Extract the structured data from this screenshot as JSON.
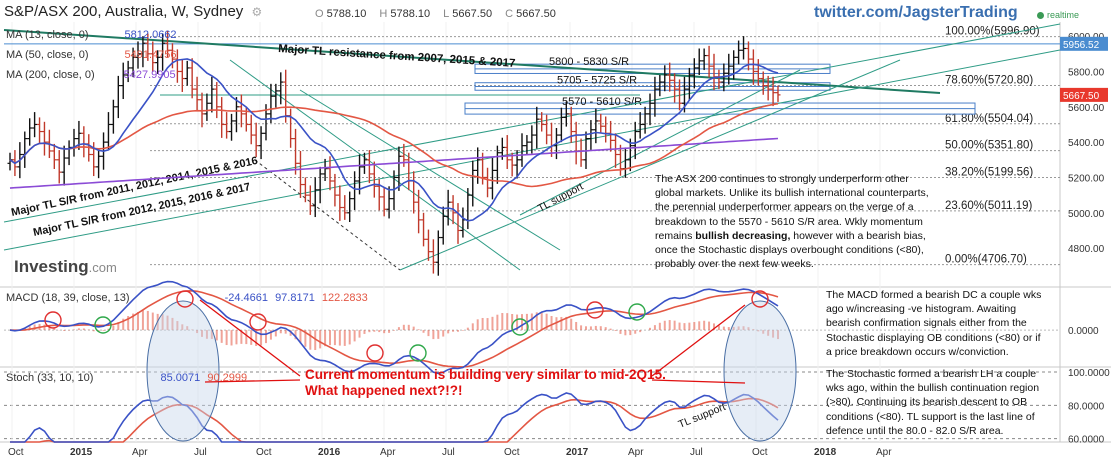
{
  "header": {
    "title": "S&P/ASX 200, Australia, W, Sydney",
    "open_label": "O",
    "open": "5788.10",
    "high_label": "H",
    "high": "5788.10",
    "low_label": "L",
    "low": "5667.50",
    "close_label": "C",
    "close": "5667.50",
    "twitter": "twitter.com/JagsterTrading",
    "realtime": "realtime",
    "logo": "Investing",
    "logo_suffix": ".com"
  },
  "indicators": {
    "ma13": {
      "label": "MA (13, close, 0)",
      "value": "5812.0662"
    },
    "ma50": {
      "label": "MA (50, close, 0)",
      "value": "5491.4756"
    },
    "ma200": {
      "label": "MA (200, close, 0)",
      "value": "5427.9905"
    },
    "macd": {
      "label": "MACD (18, 39, close, 13)",
      "v1": "-24.4661",
      "v2": "97.8171",
      "v3": "122.2833"
    },
    "stoch": {
      "label": "Stoch (33, 10, 10)",
      "v1": "85.0071",
      "v2": "90.2999"
    }
  },
  "annotations": {
    "tl_2007": "Major TL resistance from 2007, 2015 & 2017",
    "tl_2011": "Major TL S/R from 2011, 2012, 2014, 2015 & 2016",
    "tl_2012": "Major TL S/R from 2012, 2015, 2016 & 2017",
    "sr_5800": "5800 - 5830 S/R",
    "sr_5705": "5705 - 5725 S/R",
    "sr_5570": "5570 - 5610 S/R",
    "tl_support": "TL support",
    "tl_support_stoch": "TL support",
    "red_note_1": "Current momentum is building very similar to mid-2Q15.",
    "red_note_2": "What happened next?!?!"
  },
  "notes": {
    "main": [
      "The ASX 200 continues to strongly underperform  other",
      "global markets.  Unlike its bullish international counterparts,",
      "the perennial underperformer appears on the verge of a",
      "breakdown to the 5570 - 5610 S/R area.  Wkly momentum",
      "remains ",
      "bullish decreasing,",
      " however with a bearish bias,",
      "once the Stochastic displays overbought  conditions (<80),",
      "probably over the next few weeks."
    ],
    "macd": [
      "The MACD formed a bearish DC a couple  wks",
      "ago w/increasing -ve histogram.  Awaiting",
      "bearish confirmation signals either from the",
      "Stochastic displaying OB conditions (<80) or if",
      "a price breakdown occurs  w/conviction."
    ],
    "stoch": [
      "The Stochastic formed a bearish LH a couple",
      "wks ago, within the bullish continuation region",
      "(>80).  Continuing its bearish descent to OB",
      "conditions (<80).  TL support is the last line of",
      "defence until the 80.0 - 82.0 S/R area."
    ]
  },
  "chart_data": {
    "type": "candlestick",
    "title": "S&P/ASX 200, Australia, W, Sydney",
    "price_axis": {
      "ylim": [
        4580,
        6080
      ],
      "ticks": [
        "6000.00",
        "5800.00",
        "5600.00",
        "5400.00",
        "5200.00",
        "5000.00",
        "4800.00"
      ],
      "tick_values": [
        6000,
        5800,
        5600,
        5400,
        5200,
        5000,
        4800
      ]
    },
    "current_price": {
      "value": 5667.5,
      "label": "5667.50",
      "color": "#e8382c"
    },
    "top_level": {
      "value": 5956.52,
      "label": "5956.52",
      "color": "#4a8cd0"
    },
    "time_axis": {
      "labels": [
        "Oct",
        "2015",
        "Apr",
        "Jul",
        "Oct",
        "2016",
        "Apr",
        "Jul",
        "Oct",
        "2017",
        "Apr",
        "Jul",
        "Oct",
        "2018",
        "Apr"
      ],
      "bold": [
        "2015",
        "2016",
        "2017",
        "2018"
      ]
    },
    "fibonacci": [
      {
        "label": "100.00%(5996.90)",
        "value": 5996.9
      },
      {
        "label": "78.60%(5720.80)",
        "value": 5720.8
      },
      {
        "label": "61.80%(5504.04)",
        "value": 5504.04
      },
      {
        "label": "50.00%(5351.80)",
        "value": 5351.8
      },
      {
        "label": "38.20%(5199.56)",
        "value": 5199.56
      },
      {
        "label": "23.60%(5011.19)",
        "value": 5011.19
      },
      {
        "label": "0.00%(4706.70)",
        "value": 4706.7
      }
    ],
    "sr_zones": [
      {
        "label": "5800 - 5830 S/R",
        "low": 5800,
        "high": 5830
      },
      {
        "label": "5705 - 5725 S/R",
        "low": 5705,
        "high": 5725
      },
      {
        "label": "5570 - 5610 S/R",
        "low": 5570,
        "high": 5610
      }
    ],
    "series_close": [
      5300,
      5260,
      5330,
      5420,
      5480,
      5500,
      5460,
      5400,
      5350,
      5300,
      5230,
      5310,
      5370,
      5420,
      5450,
      5390,
      5330,
      5260,
      5320,
      5400,
      5500,
      5600,
      5720,
      5780,
      5820,
      5880,
      5900,
      5960,
      5900,
      5850,
      5880,
      5960,
      5920,
      5870,
      5800,
      5760,
      5820,
      5700,
      5640,
      5560,
      5620,
      5700,
      5600,
      5500,
      5460,
      5520,
      5600,
      5560,
      5500,
      5440,
      5380,
      5450,
      5560,
      5660,
      5690,
      5740,
      5550,
      5420,
      5280,
      5160,
      5100,
      5040,
      5130,
      5220,
      5250,
      5180,
      5100,
      5030,
      5000,
      5080,
      5180,
      5260,
      5300,
      5220,
      5150,
      5090,
      5020,
      5080,
      5200,
      5320,
      5300,
      5180,
      5060,
      4960,
      4850,
      4780,
      4720,
      4860,
      4980,
      5060,
      5000,
      4900,
      4960,
      5100,
      5240,
      5300,
      5200,
      5140,
      5240,
      5340,
      5370,
      5300,
      5270,
      5300,
      5380,
      5400,
      5440,
      5530,
      5500,
      5440,
      5380,
      5440,
      5540,
      5560,
      5460,
      5350,
      5300,
      5420,
      5470,
      5520,
      5490,
      5450,
      5410,
      5330,
      5250,
      5300,
      5380,
      5460,
      5500,
      5560,
      5620,
      5700,
      5740,
      5780,
      5750,
      5700,
      5620,
      5700,
      5780,
      5820,
      5860,
      5890,
      5830,
      5770,
      5740,
      5790,
      5830,
      5880,
      5920,
      5930,
      5870,
      5800,
      5760,
      5720,
      5700,
      5680,
      5667.5
    ],
    "bullish_color": "#111111",
    "bearish_color": "#c0392b",
    "moving_averages": [
      {
        "name": "MA (13, close, 0)",
        "color": "#3a52c6"
      },
      {
        "name": "MA (50, close, 0)",
        "color": "#e35744"
      },
      {
        "name": "MA (200, close, 0)",
        "color": "#8b4bd6"
      }
    ],
    "macd": {
      "ylim": [
        -120,
        140
      ],
      "ticks": [
        "0.0000"
      ],
      "tick_values": [
        0
      ],
      "signal_color": "#e35744",
      "macd_color": "#3a52c6",
      "hist_color": "#e35744"
    },
    "stochastic": {
      "ylim": [
        58,
        103
      ],
      "ticks": [
        "100.0000",
        "80.0000",
        "60.0000"
      ],
      "tick_values": [
        100,
        80,
        60
      ],
      "k_color": "#3a52c6",
      "d_color": "#e35744"
    },
    "grid": true
  }
}
